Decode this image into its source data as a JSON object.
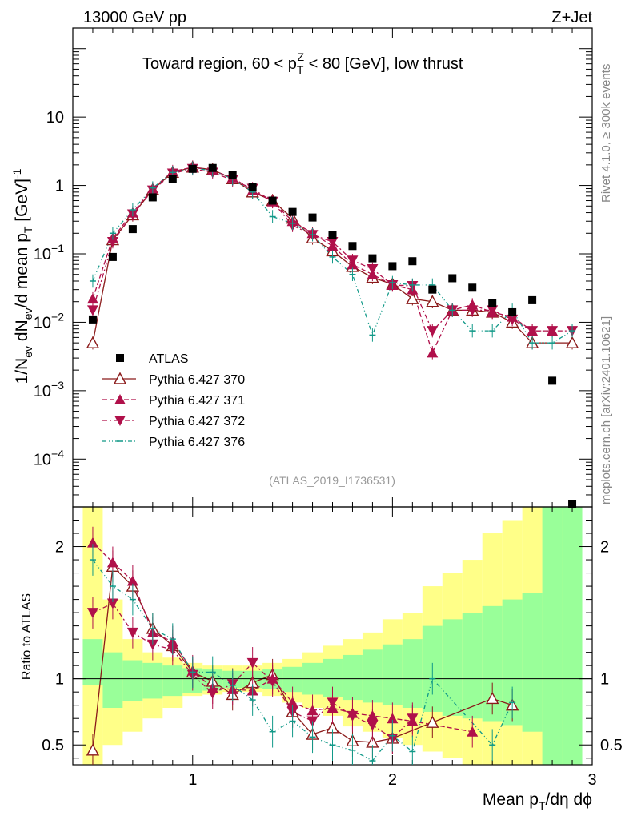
{
  "header": {
    "energy": "13000 GeV pp",
    "process": "Z+Jet"
  },
  "side_labels": {
    "rivet": "Rivet 4.1.0, ≥ 300k events",
    "source": "mcplots.cern.ch [arXiv:2401.10621]"
  },
  "chart_data": {
    "type": "scatter",
    "title": "Toward region, 60 < p_T^Z < 80 [GeV], low thrust",
    "analysis_id": "(ATLAS_2019_I1736531)",
    "xlabel": "Mean p_T/dη dϕ",
    "ylabel": "1/N_ev dN_ev/d mean p_T [GeV]^-1",
    "ratio_ylabel": "Ratio to ATLAS",
    "xlim": [
      0.4,
      3.0
    ],
    "ylim": [
      2e-05,
      200
    ],
    "yscale": "log",
    "ratio_ylim": [
      0.35,
      2.3
    ],
    "xticks": [
      {
        "v": 1,
        "label": "1"
      },
      {
        "v": 2,
        "label": "2"
      },
      {
        "v": 3,
        "label": "3"
      }
    ],
    "yticks": [
      {
        "v": 0.0001,
        "label": "10",
        "exp": "−4"
      },
      {
        "v": 0.001,
        "label": "10",
        "exp": "−3"
      },
      {
        "v": 0.01,
        "label": "10",
        "exp": "−2"
      },
      {
        "v": 0.1,
        "label": "10",
        "exp": "−1"
      },
      {
        "v": 1,
        "label": "1",
        "exp": ""
      },
      {
        "v": 10,
        "label": "10",
        "exp": ""
      }
    ],
    "ratio_yticks": [
      {
        "v": 0.5,
        "label": "0.5"
      },
      {
        "v": 1,
        "label": "1"
      },
      {
        "v": 2,
        "label": "2"
      }
    ],
    "x": [
      0.5,
      0.6,
      0.7,
      0.8,
      0.9,
      1.0,
      1.1,
      1.2,
      1.3,
      1.4,
      1.5,
      1.6,
      1.7,
      1.8,
      1.9,
      2.0,
      2.1,
      2.2,
      2.3,
      2.4,
      2.5,
      2.6,
      2.7,
      2.8,
      2.9
    ],
    "data": {
      "name": "ATLAS",
      "values": [
        0.011,
        0.09,
        0.23,
        0.67,
        1.25,
        1.75,
        1.8,
        1.42,
        0.95,
        0.6,
        0.41,
        0.34,
        0.19,
        0.13,
        0.086,
        0.066,
        0.078,
        0.03,
        0.044,
        0.032,
        0.019,
        0.014,
        0.021,
        0.0014,
        2.2e-05
      ]
    },
    "band_inner": [
      0.95,
      0.78,
      0.83,
      0.85,
      0.87,
      0.89,
      0.91,
      0.93,
      0.93,
      0.92,
      0.9,
      0.88,
      0.86,
      0.84,
      0.82,
      0.8,
      0.78,
      0.75,
      0.72,
      0.7,
      0.68,
      0.65,
      0.6,
      0.35,
      0.35
    ],
    "band_outer": [
      0.35,
      0.5,
      0.6,
      0.7,
      0.78,
      0.87,
      0.88,
      0.9,
      0.9,
      0.87,
      0.82,
      0.78,
      0.72,
      0.64,
      0.6,
      0.55,
      0.5,
      0.45,
      0.4,
      0.35,
      0.35,
      0.35,
      0.35,
      0.35,
      0.35
    ],
    "band_inner_hi": [
      1.3,
      1.2,
      1.14,
      1.12,
      1.1,
      1.08,
      1.07,
      1.06,
      1.06,
      1.07,
      1.09,
      1.12,
      1.15,
      1.18,
      1.22,
      1.26,
      1.3,
      1.4,
      1.45,
      1.5,
      1.55,
      1.6,
      1.65,
      2.3,
      2.3
    ],
    "band_outer_hi": [
      2.3,
      1.6,
      1.3,
      1.2,
      1.16,
      1.12,
      1.1,
      1.1,
      1.1,
      1.12,
      1.15,
      1.2,
      1.25,
      1.3,
      1.35,
      1.45,
      1.5,
      1.7,
      1.8,
      1.9,
      2.1,
      2.2,
      2.3,
      2.3,
      2.3
    ],
    "series": [
      {
        "name": "Pythia 6.427 370",
        "style": "solid",
        "marker": "open-triangle-up",
        "color": "#8b1a1a",
        "values": [
          0.005,
          0.16,
          0.37,
          0.87,
          1.55,
          1.85,
          1.7,
          1.25,
          0.8,
          0.6,
          0.33,
          0.17,
          0.11,
          0.065,
          0.045,
          0.036,
          0.022,
          0.02,
          0.015,
          0.015,
          0.014,
          0.01,
          0.005,
          null,
          0.005
        ]
      },
      {
        "name": "Pythia 6.427 371",
        "style": "dashed",
        "marker": "filled-triangle-up",
        "color": "#b0104a",
        "values": [
          0.022,
          0.17,
          0.4,
          0.9,
          1.6,
          1.85,
          1.65,
          1.3,
          0.85,
          0.58,
          0.3,
          0.2,
          0.13,
          0.07,
          0.05,
          0.035,
          0.03,
          0.0036,
          0.015,
          0.018,
          0.014,
          0.012,
          0.0075,
          0.0075,
          null
        ]
      },
      {
        "name": "Pythia 6.427 372",
        "style": "dashdot",
        "marker": "filled-triangle-down",
        "color": "#b0104a",
        "values": [
          0.015,
          0.15,
          0.38,
          0.85,
          1.5,
          1.75,
          1.55,
          1.2,
          0.9,
          0.58,
          0.26,
          0.19,
          0.15,
          0.08,
          0.06,
          0.035,
          0.034,
          0.0075,
          0.015,
          0.015,
          0.015,
          0.011,
          0.0075,
          0.0075,
          0.0075
        ]
      },
      {
        "name": "Pythia 6.427 376",
        "style": "dashdotdot",
        "marker": "tick",
        "color": "#119988",
        "values": [
          0.04,
          0.2,
          0.44,
          0.92,
          1.55,
          1.8,
          1.65,
          1.25,
          0.8,
          0.35,
          0.28,
          0.19,
          0.09,
          0.05,
          0.0065,
          0.038,
          0.035,
          0.035,
          0.015,
          0.0075,
          0.0075,
          0.015,
          0.005,
          0.005,
          0.0075
        ]
      }
    ],
    "ratios": [
      [
        0.46,
        1.85,
        1.7,
        1.38,
        1.25,
        1.05,
        0.98,
        0.88,
        0.97,
        1.03,
        0.75,
        0.58,
        0.63,
        0.53,
        0.52,
        0.55,
        null,
        0.67,
        null,
        null,
        0.85,
        0.8,
        null,
        null,
        null
      ],
      [
        2.03,
        1.88,
        1.74,
        1.35,
        1.28,
        1.06,
        0.93,
        0.92,
        0.91,
        1.0,
        0.82,
        0.76,
        0.78,
        0.74,
        0.72,
        0.7,
        0.68,
        null,
        null,
        0.6,
        null,
        null,
        null,
        null,
        null
      ],
      [
        1.5,
        1.57,
        1.35,
        1.26,
        1.22,
        1.03,
        0.89,
        0.96,
        1.12,
        0.98,
        0.75,
        0.68,
        0.82,
        0.72,
        0.65,
        0.55,
        0.7,
        null,
        null,
        null,
        null,
        null,
        null,
        null,
        null
      ],
      [
        1.9,
        1.7,
        1.6,
        1.38,
        1.3,
        1.05,
        1.05,
        0.95,
        0.84,
        0.6,
        0.68,
        0.56,
        0.5,
        0.46,
        0.38,
        0.57,
        0.45,
        1.0,
        null,
        null,
        0.5,
        0.82,
        null,
        null,
        null
      ]
    ]
  }
}
